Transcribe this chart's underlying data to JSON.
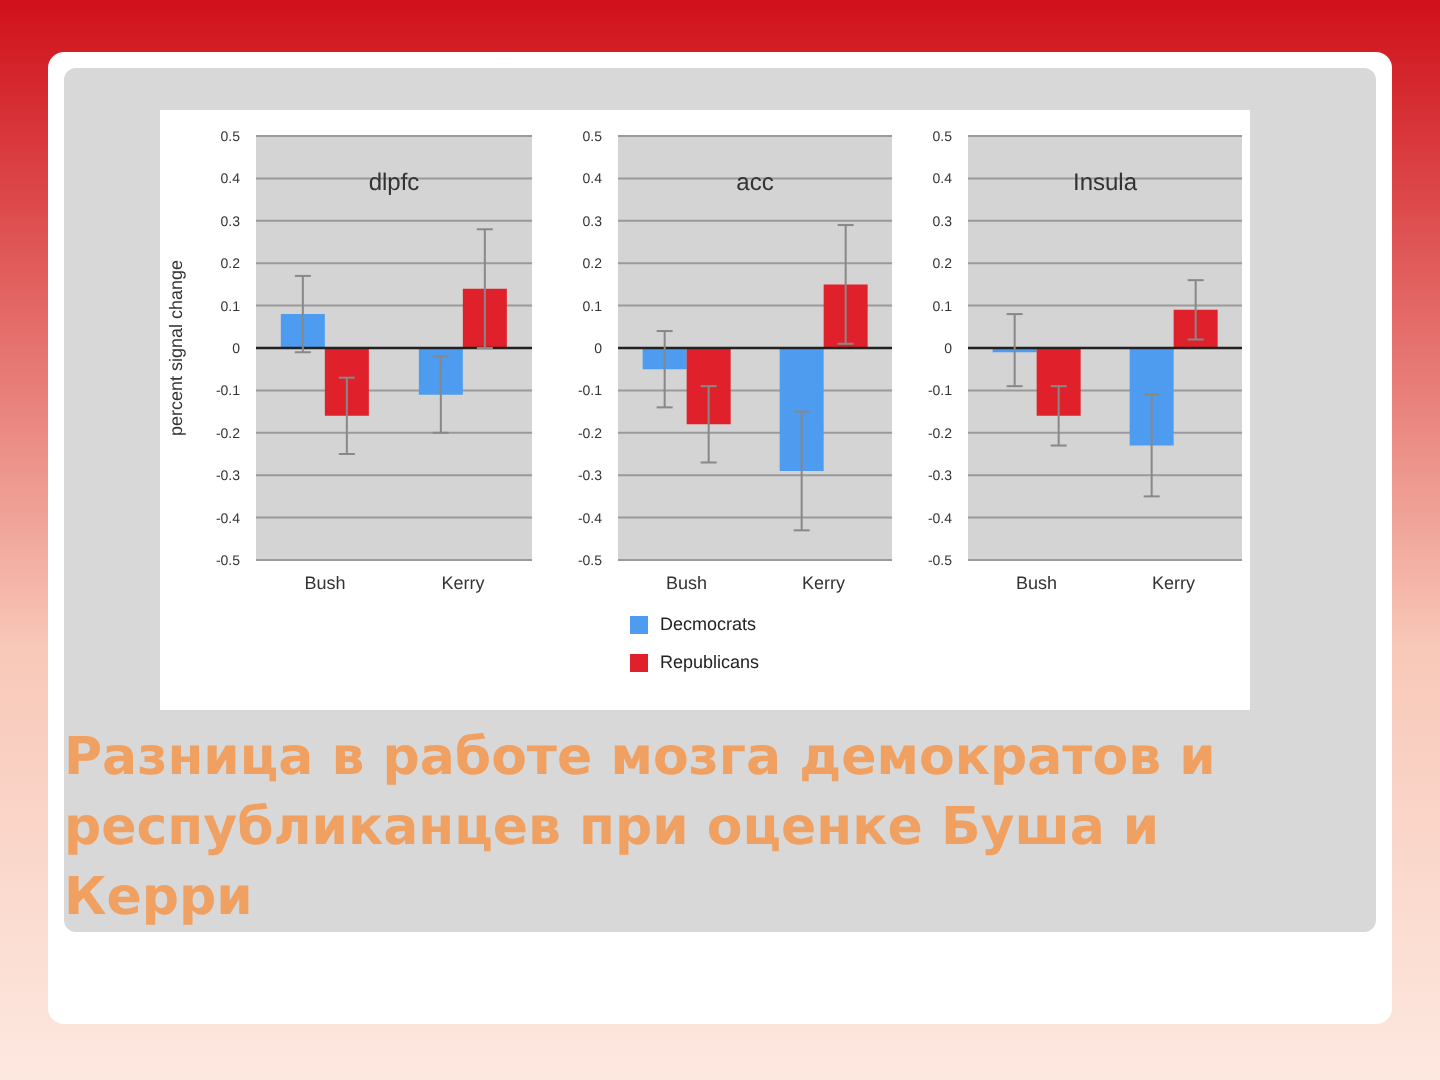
{
  "chart_data": [
    {
      "type": "bar",
      "title": "dlpfc",
      "ylabel": "percent signal change",
      "categories": [
        "Bush",
        "Kerry"
      ],
      "ylim": [
        -0.5,
        0.5
      ],
      "yticks": [
        -0.5,
        -0.4,
        -0.3,
        -0.2,
        -0.1,
        0,
        0.1,
        0.2,
        0.3,
        0.4,
        0.5
      ],
      "grid": "y",
      "series": [
        {
          "color": "#4e9cf0",
          "values": [
            0.08,
            -0.11
          ],
          "errors": [
            0.09,
            0.09
          ]
        },
        {
          "color": "#e0202a",
          "values": [
            -0.16,
            0.14
          ],
          "errors": [
            0.09,
            0.14
          ]
        }
      ]
    },
    {
      "type": "bar",
      "title": "acc",
      "categories": [
        "Bush",
        "Kerry"
      ],
      "ylim": [
        -0.5,
        0.5
      ],
      "yticks": [
        -0.5,
        -0.4,
        -0.3,
        -0.2,
        -0.1,
        0,
        0.1,
        0.2,
        0.3,
        0.4,
        0.5
      ],
      "grid": "y",
      "legend": "bottom",
      "series": [
        {
          "name": "Decmocrats",
          "color": "#4e9cf0",
          "values": [
            -0.05,
            -0.29
          ],
          "errors": [
            0.09,
            0.14
          ]
        },
        {
          "name": "Republicans",
          "color": "#e0202a",
          "values": [
            -0.18,
            0.15
          ],
          "errors": [
            0.09,
            0.14
          ]
        }
      ]
    },
    {
      "type": "bar",
      "title": "Insula",
      "categories": [
        "Bush",
        "Kerry"
      ],
      "ylim": [
        -0.5,
        0.5
      ],
      "yticks": [
        -0.5,
        -0.4,
        -0.3,
        -0.2,
        -0.1,
        0,
        0.1,
        0.2,
        0.3,
        0.4,
        0.5
      ],
      "grid": "y",
      "annotations": [
        "Разница в работе мозга демократов и республиканцев при оценке Буша и Керри"
      ],
      "series": [
        {
          "color": "#4e9cf0",
          "values": [
            -0.01,
            -0.23
          ],
          "errors": [
            [
              -0.09,
              0.08
            ],
            0.12
          ]
        },
        {
          "color": "#e0202a",
          "values": [
            -0.16,
            0.09
          ],
          "errors": [
            0.07,
            0.07
          ]
        }
      ]
    }
  ]
}
